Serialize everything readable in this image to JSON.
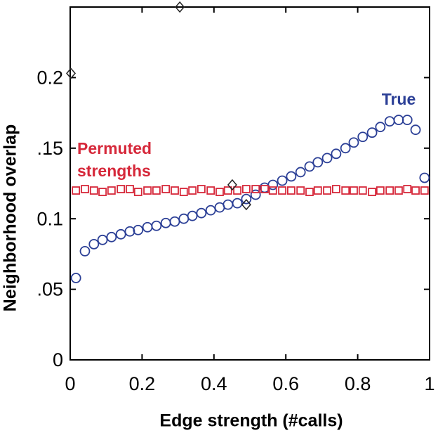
{
  "chart_data": {
    "type": "scatter",
    "xlabel": "Edge strength (#calls)",
    "ylabel": "Neighborhood  overlap",
    "xlim": [
      0,
      1
    ],
    "ylim": [
      0,
      0.25
    ],
    "xticks": [
      0,
      0.2,
      0.4,
      0.6,
      0.8,
      1
    ],
    "yticks": [
      0,
      {
        "value": 0.05,
        "label": ".05"
      },
      {
        "value": 0.1,
        "label": "0.1"
      },
      {
        "value": 0.15,
        "label": ".15"
      },
      {
        "value": 0.2,
        "label": "0.2"
      }
    ],
    "annotations": [
      {
        "text": "True",
        "color": "#2b3f96"
      },
      {
        "text": "Permuted",
        "color": "#d6283a"
      },
      {
        "text": "strengths",
        "color": "#d6283a"
      }
    ],
    "series": [
      {
        "marker": "circle",
        "color": "#2b3f96",
        "x": [
          0.016,
          0.041,
          0.066,
          0.09,
          0.115,
          0.141,
          0.166,
          0.189,
          0.215,
          0.24,
          0.266,
          0.291,
          0.316,
          0.34,
          0.365,
          0.391,
          0.416,
          0.439,
          0.465,
          0.49,
          0.516,
          0.541,
          0.564,
          0.59,
          0.615,
          0.641,
          0.666,
          0.689,
          0.715,
          0.74,
          0.766,
          0.789,
          0.814,
          0.84,
          0.863,
          0.889,
          0.914,
          0.938,
          0.961,
          0.986
        ],
        "values": [
          0.058,
          0.077,
          0.082,
          0.085,
          0.087,
          0.089,
          0.091,
          0.092,
          0.094,
          0.095,
          0.097,
          0.098,
          0.1,
          0.102,
          0.104,
          0.106,
          0.108,
          0.11,
          0.111,
          0.114,
          0.117,
          0.122,
          0.124,
          0.127,
          0.13,
          0.133,
          0.137,
          0.14,
          0.143,
          0.146,
          0.15,
          0.154,
          0.158,
          0.161,
          0.165,
          0.169,
          0.17,
          0.17,
          0.163,
          0.129
        ]
      },
      {
        "marker": "square",
        "color": "#d6283a",
        "x": [
          0.016,
          0.041,
          0.066,
          0.09,
          0.115,
          0.141,
          0.166,
          0.189,
          0.215,
          0.24,
          0.266,
          0.291,
          0.316,
          0.34,
          0.365,
          0.391,
          0.416,
          0.439,
          0.465,
          0.49,
          0.516,
          0.541,
          0.564,
          0.59,
          0.615,
          0.641,
          0.666,
          0.689,
          0.715,
          0.74,
          0.766,
          0.789,
          0.814,
          0.84,
          0.863,
          0.889,
          0.914,
          0.938,
          0.961,
          0.986
        ],
        "values": [
          0.12,
          0.121,
          0.12,
          0.119,
          0.12,
          0.121,
          0.121,
          0.119,
          0.12,
          0.12,
          0.121,
          0.12,
          0.119,
          0.12,
          0.121,
          0.12,
          0.119,
          0.12,
          0.12,
          0.121,
          0.121,
          0.121,
          0.12,
          0.12,
          0.12,
          0.12,
          0.119,
          0.12,
          0.12,
          0.121,
          0.12,
          0.12,
          0.12,
          0.119,
          0.12,
          0.12,
          0.12,
          0.121,
          0.12,
          0.12
        ]
      },
      {
        "marker": "diamond",
        "color": "#222222",
        "x": [
          0.002,
          0.305,
          0.451,
          0.49
        ],
        "values": [
          0.203,
          0.25,
          0.124,
          0.11
        ]
      }
    ]
  }
}
